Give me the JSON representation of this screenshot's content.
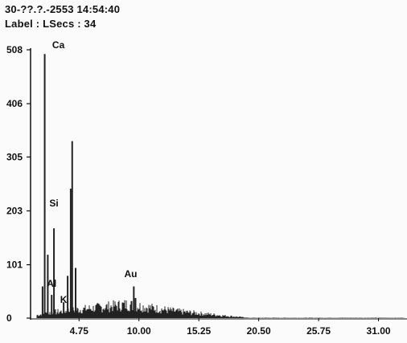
{
  "header": {
    "date_time": "30-??.?.-2553 14:54:40",
    "label_line": "Label : LSecs : 34"
  },
  "chart_data": {
    "type": "bar",
    "title": "",
    "xlabel": "",
    "ylabel": "",
    "xlim": [
      0.5,
      33.5
    ],
    "ylim": [
      0,
      508
    ],
    "y_ticks": [
      "0",
      "101",
      "203",
      "305",
      "406",
      "508"
    ],
    "x_ticks": [
      "4.75",
      "10.00",
      "15.25",
      "20.50",
      "25.75",
      "31.00"
    ],
    "peaks": [
      {
        "x": 1.74,
        "y": 500,
        "label": "Ca"
      },
      {
        "x": 1.55,
        "y": 60
      },
      {
        "x": 2.01,
        "y": 120
      },
      {
        "x": 2.55,
        "y": 170,
        "label": "Si"
      },
      {
        "x": 2.35,
        "y": 44,
        "label": "Al"
      },
      {
        "x": 3.4,
        "y": 30,
        "label": "K"
      },
      {
        "x": 4.15,
        "y": 335
      },
      {
        "x": 4.02,
        "y": 245
      },
      {
        "x": 3.75,
        "y": 80
      },
      {
        "x": 4.45,
        "y": 95
      },
      {
        "x": 9.7,
        "y": 38,
        "label": "Au"
      },
      {
        "x": 9.55,
        "y": 60
      }
    ],
    "colors": {
      "bar": "#222222",
      "axis": "#111111",
      "background": "#fbfbfb"
    }
  }
}
